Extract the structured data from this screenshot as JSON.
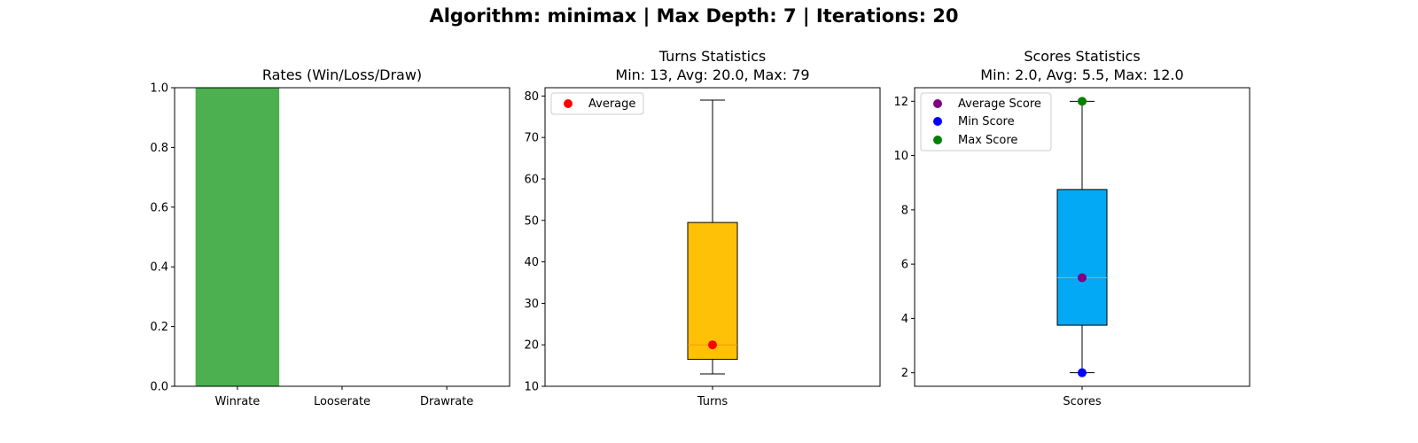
{
  "suptitle": "Algorithm: minimax | Max Depth: 7 | Iterations: 20",
  "colors": {
    "winrate": "#4caf50",
    "turns_box": "#ffc107",
    "scores_box": "#03a9f4",
    "median": "#ff9800",
    "average_turns": "#ff0000",
    "average_score": "#800080",
    "min_score": "#0000ff",
    "max_score": "#008000"
  },
  "chart_data": [
    {
      "type": "bar",
      "title": "Rates (Win/Loss/Draw)",
      "categories": [
        "Winrate",
        "Looserate",
        "Drawrate"
      ],
      "values": [
        1.0,
        0.0,
        0.0
      ],
      "ylim": [
        0,
        1.0
      ],
      "yticks": [
        0.0,
        0.2,
        0.4,
        0.6,
        0.8,
        1.0
      ],
      "ytick_labels": [
        "0.0",
        "0.2",
        "0.4",
        "0.6",
        "0.8",
        "1.0"
      ]
    },
    {
      "type": "box",
      "title": "Turns Statistics",
      "subtitle": "Min: 13, Avg: 20.0, Max: 79",
      "categories": [
        "Turns"
      ],
      "box": {
        "whisker_low": 13,
        "q1": 16.5,
        "median": 20,
        "q3": 49.5,
        "whisker_high": 79
      },
      "points": [
        {
          "name": "Average",
          "value": 20.0
        }
      ],
      "ylim": [
        10,
        82
      ],
      "yticks": [
        10,
        20,
        30,
        40,
        50,
        60,
        70,
        80
      ],
      "ytick_labels": [
        "10",
        "20",
        "30",
        "40",
        "50",
        "60",
        "70",
        "80"
      ],
      "legend": [
        "Average"
      ],
      "legend_position": "top-left"
    },
    {
      "type": "box",
      "title": "Scores Statistics",
      "subtitle": "Min: 2.0, Avg: 5.5, Max: 12.0",
      "categories": [
        "Scores"
      ],
      "box": {
        "whisker_low": 2.0,
        "q1": 3.75,
        "median": 5.5,
        "q3": 8.75,
        "whisker_high": 12.0
      },
      "points": [
        {
          "name": "Average Score",
          "value": 5.5
        },
        {
          "name": "Min Score",
          "value": 2.0
        },
        {
          "name": "Max Score",
          "value": 12.0
        }
      ],
      "ylim": [
        1.5,
        12.5
      ],
      "yticks": [
        2,
        4,
        6,
        8,
        10,
        12
      ],
      "ytick_labels": [
        "2",
        "4",
        "6",
        "8",
        "10",
        "12"
      ],
      "legend": [
        "Average Score",
        "Min Score",
        "Max Score"
      ],
      "legend_position": "top-left"
    }
  ]
}
